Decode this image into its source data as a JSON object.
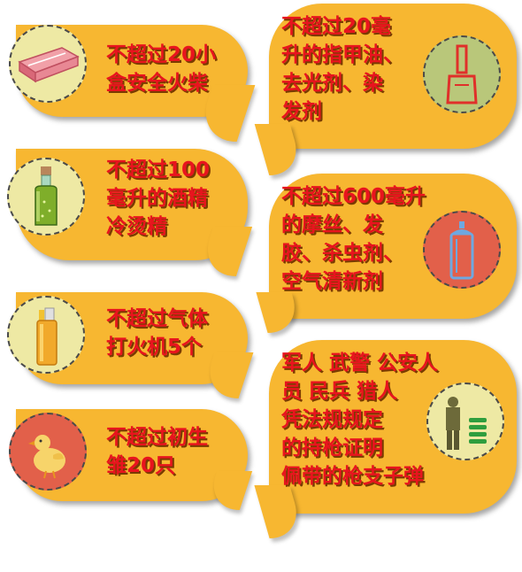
{
  "items": {
    "matches": {
      "lines": [
        "不超过20小",
        "盒安全火柴"
      ],
      "icon": "matchbox-icon"
    },
    "nail_polish": {
      "lines": [
        "不超过20毫",
        "升的指甲油、",
        "去光剂、染",
        "发剂"
      ],
      "icon": "nail-polish-icon"
    },
    "alcohol": {
      "lines": [
        "不超过100",
        "毫升的酒精",
        "冷烫精"
      ],
      "icon": "bottle-icon"
    },
    "mousse": {
      "lines": [
        "不超过600毫升",
        "的摩丝、发",
        "胶、杀虫剂、",
        "空气清新剂"
      ],
      "icon": "spray-can-icon"
    },
    "lighter": {
      "lines": [
        "不超过气体",
        "打火机5个"
      ],
      "icon": "lighter-icon"
    },
    "guns": {
      "lines": [
        "军人 武警 公安人",
        "员 民兵 猎人",
        "凭法规规定",
        "的持枪证明",
        "佩带的枪支子弹"
      ],
      "icon": "soldier-bullets-icon"
    },
    "chicks": {
      "lines": [
        "不超过初生",
        "雏20只"
      ],
      "icon": "chick-icon"
    }
  },
  "colors": {
    "bubble": "#f7b731",
    "text": "#e8141e",
    "circle_cream": "#eee9a4",
    "circle_red": "#e2604a",
    "circle_green": "#b9c77a"
  }
}
